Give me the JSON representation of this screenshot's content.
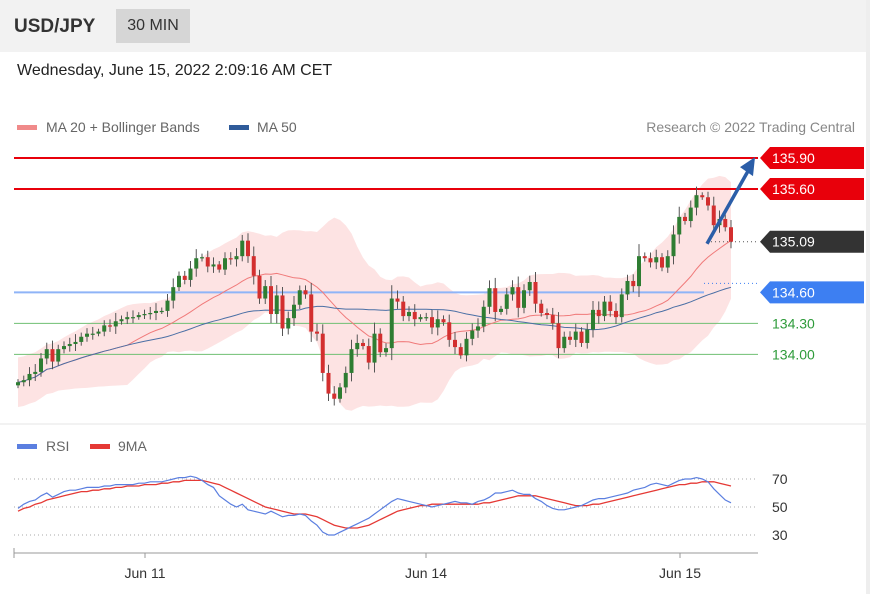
{
  "header": {
    "symbol": "USD/JPY",
    "timeframe": "30 MIN"
  },
  "datetime": "Wednesday, June 15, 2022 2:09:16 AM CET",
  "credit": "Research © 2022 Trading Central",
  "colors": {
    "up": "#2e7d32",
    "down": "#d32f2f",
    "wick": "#555555",
    "ma20": "#f07a7a",
    "bands_fill": "#fde3e3",
    "ma50": "#4a6fa5",
    "resistance": "#e8000b",
    "support": "#3d7ff2",
    "target": "#4caf50",
    "current": "#333333",
    "arrow": "#2b5ea8",
    "rsi": "#5b7fe0",
    "rsi_ma": "#e53935"
  },
  "chart_data": [
    {
      "type": "candlestick",
      "title": "USD/JPY 30 MIN",
      "legend": [
        {
          "name": "MA 20 + Bollinger Bands",
          "color": "#f08a8a"
        },
        {
          "name": "MA 50",
          "color": "#2f5b9a"
        }
      ],
      "legend_position": "top-left",
      "ylim": [
        133.26,
        136.03
      ],
      "x_ticks": [
        "Jun 11",
        "Jun 14",
        "Jun 15"
      ],
      "levels": [
        {
          "value": 135.9,
          "label": "135.90",
          "kind": "resistance"
        },
        {
          "value": 135.6,
          "label": "135.60",
          "kind": "resistance"
        },
        {
          "value": 135.09,
          "label": "135.09",
          "kind": "current"
        },
        {
          "value": 134.6,
          "label": "134.60",
          "kind": "pivot"
        },
        {
          "value": 134.3,
          "label": "134.30",
          "kind": "support"
        },
        {
          "value": 134.0,
          "label": "134.00",
          "kind": "support"
        }
      ],
      "projection": {
        "from": 135.07,
        "to": 135.85,
        "direction": "up"
      },
      "close": [
        133.73,
        133.75,
        133.81,
        133.83,
        133.96,
        134.05,
        133.93,
        134.05,
        134.08,
        134.1,
        134.12,
        134.17,
        134.2,
        134.2,
        134.22,
        134.28,
        134.27,
        134.32,
        134.34,
        134.36,
        134.36,
        134.38,
        134.39,
        134.4,
        134.42,
        134.42,
        134.52,
        134.65,
        134.76,
        134.72,
        134.83,
        134.93,
        134.94,
        134.85,
        134.87,
        134.82,
        134.93,
        134.92,
        134.95,
        135.1,
        134.95,
        134.76,
        134.54,
        134.66,
        134.39,
        134.57,
        134.25,
        134.35,
        134.48,
        134.62,
        134.58,
        134.22,
        134.2,
        133.82,
        133.62,
        133.57,
        133.68,
        133.82,
        134.05,
        134.11,
        134.08,
        133.92,
        134.2,
        134.02,
        134.06,
        134.54,
        134.51,
        134.37,
        134.41,
        134.34,
        134.36,
        134.36,
        134.26,
        134.34,
        134.31,
        134.14,
        134.07,
        133.99,
        134.15,
        134.23,
        134.27,
        134.46,
        134.64,
        134.41,
        134.44,
        134.58,
        134.65,
        134.45,
        134.62,
        134.7,
        134.49,
        134.4,
        134.38,
        134.3,
        134.06,
        134.17,
        134.14,
        134.22,
        134.11,
        134.24,
        134.43,
        134.37,
        134.51,
        134.42,
        134.36,
        134.58,
        134.71,
        134.66,
        134.95,
        134.93,
        134.89,
        134.94,
        134.84,
        134.95,
        135.16,
        135.33,
        135.29,
        135.42,
        135.54,
        135.52,
        135.44,
        135.25,
        135.31,
        135.23,
        135.09
      ],
      "open_first": 133.7
    },
    {
      "type": "line",
      "title": "RSI",
      "legend": [
        {
          "name": "RSI",
          "color": "#5b7fe0"
        },
        {
          "name": "9MA",
          "color": "#e53935"
        }
      ],
      "ylim": [
        22,
        80
      ],
      "y_ticks": [
        70,
        50,
        30
      ],
      "x_ticks": [
        "Jun 11",
        "Jun 14",
        "Jun 15"
      ],
      "series": [
        {
          "name": "RSI",
          "values": [
            49,
            52,
            54,
            55,
            58,
            60,
            57,
            59,
            61,
            62,
            62,
            63,
            64,
            64,
            64,
            65,
            65,
            66,
            66,
            66,
            66,
            67,
            67,
            68,
            68,
            68,
            69,
            70,
            71,
            71,
            72,
            71,
            69,
            66,
            64,
            58,
            55,
            52,
            50,
            52,
            48,
            47,
            46,
            45,
            47,
            45,
            43,
            44,
            44,
            45,
            44,
            40,
            37,
            32,
            30,
            30,
            32,
            34,
            36,
            38,
            40,
            42,
            45,
            48,
            51,
            54,
            56,
            55,
            54,
            53,
            52,
            51,
            50,
            51,
            52,
            53,
            54,
            53,
            53,
            52,
            54,
            55,
            57,
            60,
            60,
            61,
            62,
            60,
            59,
            59,
            56,
            54,
            51,
            49,
            48,
            48,
            49,
            50,
            51,
            53,
            55,
            56,
            56,
            57,
            58,
            59,
            60,
            62,
            63,
            64,
            66,
            67,
            66,
            65,
            67,
            69,
            70,
            70,
            71,
            70,
            68,
            63,
            59,
            55,
            53
          ]
        },
        {
          "name": "9MA",
          "values": [
            47,
            49,
            50,
            52,
            53,
            55,
            56,
            57,
            58,
            59,
            60,
            61,
            61,
            62,
            62,
            63,
            63,
            64,
            64,
            65,
            65,
            65,
            66,
            66,
            66,
            67,
            67,
            68,
            68,
            69,
            69,
            69,
            69,
            68,
            67,
            66,
            64,
            62,
            60,
            58,
            56,
            54,
            52,
            50,
            49,
            48,
            47,
            46,
            45,
            45,
            45,
            44,
            43,
            41,
            39,
            37,
            36,
            35,
            35,
            35,
            36,
            37,
            39,
            41,
            43,
            45,
            47,
            48,
            49,
            50,
            51,
            51,
            52,
            52,
            52,
            52,
            52,
            52,
            52,
            52,
            52,
            53,
            53,
            54,
            55,
            56,
            57,
            58,
            58,
            58,
            58,
            57,
            56,
            55,
            54,
            53,
            52,
            51,
            51,
            51,
            52,
            52,
            53,
            54,
            55,
            56,
            57,
            58,
            59,
            60,
            61,
            62,
            63,
            64,
            65,
            66,
            66,
            67,
            67,
            68,
            68,
            68,
            67,
            66,
            65
          ]
        }
      ]
    }
  ]
}
